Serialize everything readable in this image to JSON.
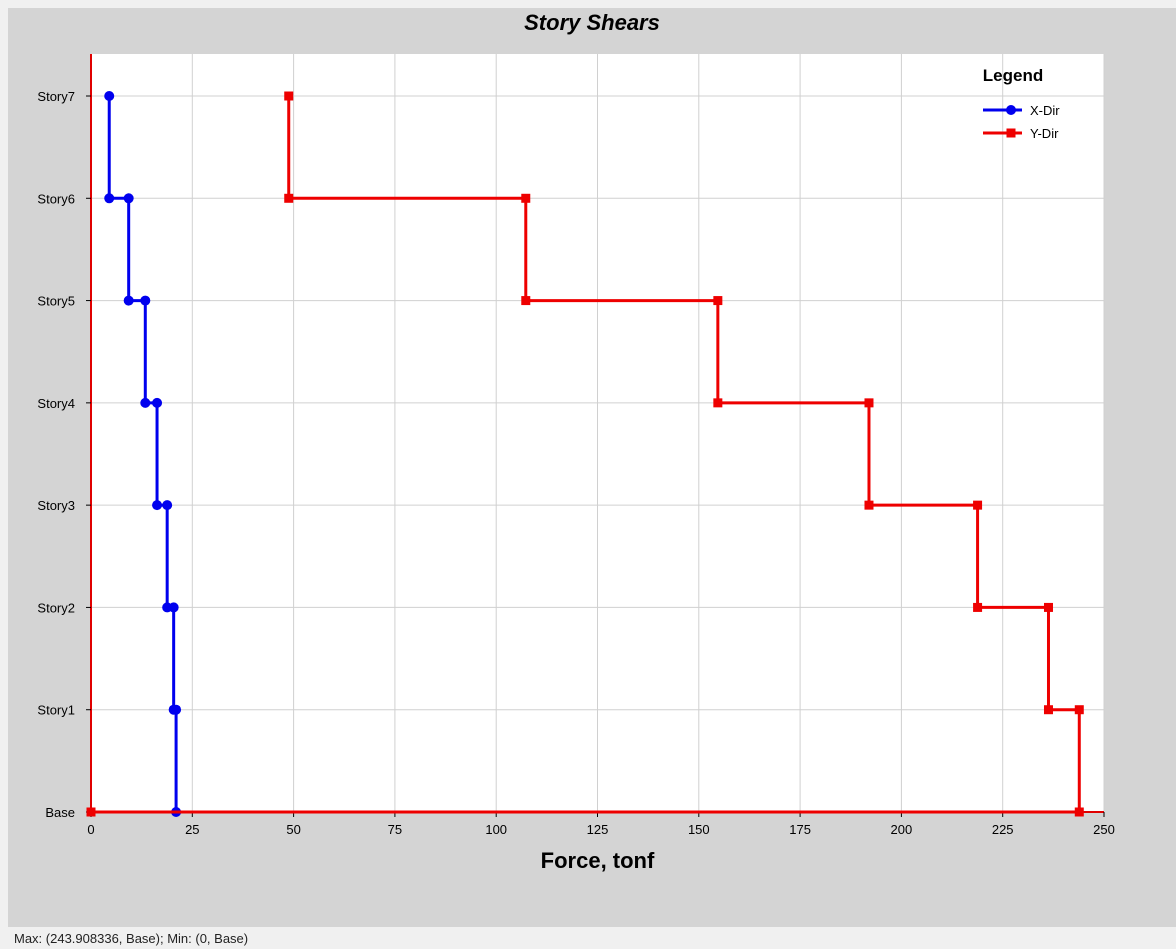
{
  "window": {
    "status_text": "Max: (243.908336, Base);   Min: (0, Base)"
  },
  "colors": {
    "panel_background": "#d4d4d4",
    "plot_background": "#ffffff",
    "grid": "#d0d0d0",
    "axis": "#e00000"
  },
  "chart_data": {
    "type": "line",
    "title": "Story Shears",
    "xlabel": "Force, tonf",
    "ylabel": "",
    "xlim": [
      0,
      250
    ],
    "x_ticks": [
      0,
      25,
      50,
      75,
      100,
      125,
      150,
      175,
      200,
      225,
      250
    ],
    "categories": [
      "Base",
      "Story1",
      "Story2",
      "Story3",
      "Story4",
      "Story5",
      "Story6",
      "Story7"
    ],
    "grid": true,
    "legend": {
      "title": "Legend",
      "placement": "top-right"
    },
    "series": [
      {
        "name": "X-Dir",
        "color": "#0000ee",
        "marker": "circle",
        "points": [
          {
            "x": 4.5,
            "y": "Story7"
          },
          {
            "x": 4.5,
            "y": "Story6"
          },
          {
            "x": 9.3,
            "y": "Story6"
          },
          {
            "x": 9.3,
            "y": "Story5"
          },
          {
            "x": 13.4,
            "y": "Story5"
          },
          {
            "x": 13.4,
            "y": "Story4"
          },
          {
            "x": 16.3,
            "y": "Story4"
          },
          {
            "x": 16.3,
            "y": "Story3"
          },
          {
            "x": 18.8,
            "y": "Story3"
          },
          {
            "x": 18.8,
            "y": "Story2"
          },
          {
            "x": 20.4,
            "y": "Story2"
          },
          {
            "x": 20.4,
            "y": "Story1"
          },
          {
            "x": 21.0,
            "y": "Story1"
          },
          {
            "x": 21.0,
            "y": "Base"
          }
        ]
      },
      {
        "name": "Y-Dir",
        "color": "#ee0000",
        "marker": "square",
        "points": [
          {
            "x": 48.8,
            "y": "Story7"
          },
          {
            "x": 48.8,
            "y": "Story6"
          },
          {
            "x": 107.3,
            "y": "Story6"
          },
          {
            "x": 107.3,
            "y": "Story5"
          },
          {
            "x": 154.7,
            "y": "Story5"
          },
          {
            "x": 154.7,
            "y": "Story4"
          },
          {
            "x": 192.0,
            "y": "Story4"
          },
          {
            "x": 192.0,
            "y": "Story3"
          },
          {
            "x": 218.8,
            "y": "Story3"
          },
          {
            "x": 218.8,
            "y": "Story2"
          },
          {
            "x": 236.3,
            "y": "Story2"
          },
          {
            "x": 236.3,
            "y": "Story1"
          },
          {
            "x": 243.9,
            "y": "Story1"
          },
          {
            "x": 243.9,
            "y": "Base"
          },
          {
            "x": 0,
            "y": "Base"
          }
        ]
      }
    ]
  }
}
